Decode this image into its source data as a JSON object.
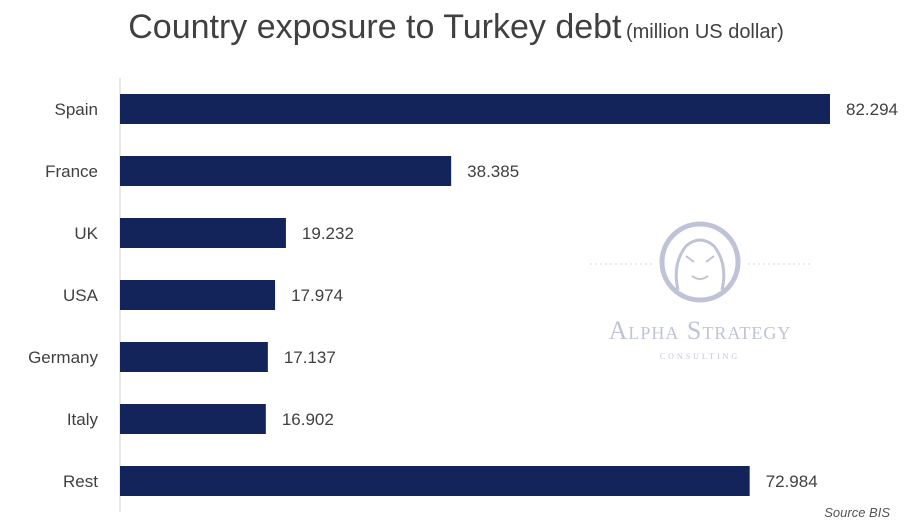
{
  "chart_data": {
    "type": "bar",
    "orientation": "horizontal",
    "title": "Country exposure to Turkey debt",
    "subtitle": "(million US dollar)",
    "categories": [
      "Spain",
      "France",
      "UK",
      "USA",
      "Germany",
      "Italy",
      "Rest"
    ],
    "values": [
      82.294,
      38.385,
      19.232,
      17.974,
      17.137,
      16.902,
      72.984
    ],
    "value_labels": [
      "82.294",
      "38.385",
      "19.232",
      "17.974",
      "17.137",
      "16.902",
      "72.984"
    ],
    "xlim": [
      0,
      82.294
    ],
    "grid": false,
    "legend": "none",
    "colors": {
      "bar": "#13245a"
    },
    "source": "Source BIS"
  },
  "watermark": {
    "brand": "Alpha Strategy",
    "tagline": "CONSULTING",
    "icon": "lion-head-logo-icon"
  }
}
